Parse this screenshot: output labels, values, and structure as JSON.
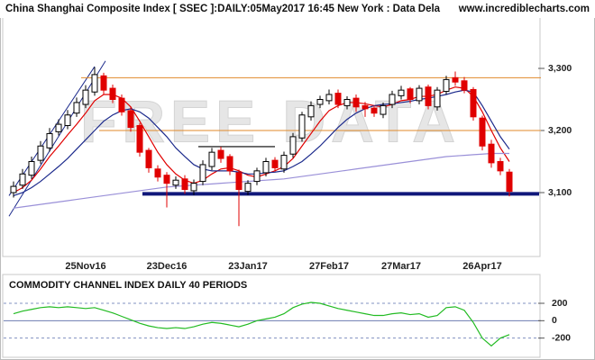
{
  "chart_data": [
    {
      "type": "candlestick",
      "title": "China Shanghai Composite Index [ SSEC ]:DAILY:05May2017 16:45 New York : Data Dela",
      "source": "www.incrediblecharts.com",
      "watermark": "FREE DATA",
      "categories": [
        null,
        null,
        null,
        null,
        null,
        null,
        null,
        null,
        "25Nov16",
        null,
        null,
        null,
        null,
        null,
        null,
        null,
        null,
        "23Dec16",
        null,
        null,
        null,
        null,
        null,
        null,
        null,
        null,
        "23Jan17",
        null,
        null,
        null,
        null,
        null,
        null,
        null,
        null,
        "27Feb17",
        null,
        null,
        null,
        null,
        null,
        null,
        null,
        "27Mar17",
        null,
        null,
        null,
        null,
        null,
        null,
        null,
        null,
        "26Apr17",
        null,
        null,
        null
      ],
      "open": [
        3100,
        3112,
        3128,
        3152,
        3172,
        3198,
        3208,
        3228,
        3242,
        3262,
        3288,
        3268,
        3252,
        3232,
        3208,
        3168,
        3138,
        3128,
        3112,
        3122,
        3103,
        3118,
        3142,
        3168,
        3158,
        3132,
        3102,
        3118,
        3132,
        3152,
        3138,
        3162,
        3188,
        3222,
        3242,
        3248,
        3260,
        3240,
        3252,
        3240,
        3236,
        3226,
        3242,
        3256,
        3267,
        3248,
        3270,
        3238,
        3263,
        3285,
        3280,
        3266,
        3220,
        3178,
        3150,
        3133
      ],
      "high": [
        3118,
        3138,
        3158,
        3183,
        3204,
        3218,
        3233,
        3253,
        3273,
        3302,
        3293,
        3274,
        3258,
        3238,
        3212,
        3172,
        3144,
        3133,
        3126,
        3128,
        3121,
        3152,
        3172,
        3174,
        3162,
        3137,
        3120,
        3140,
        3156,
        3157,
        3166,
        3196,
        3230,
        3247,
        3256,
        3266,
        3266,
        3255,
        3258,
        3246,
        3240,
        3245,
        3264,
        3272,
        3270,
        3273,
        3274,
        3270,
        3288,
        3295,
        3286,
        3270,
        3224,
        3185,
        3156,
        3138
      ],
      "low": [
        3092,
        3106,
        3122,
        3146,
        3166,
        3192,
        3202,
        3222,
        3236,
        3256,
        3258,
        3244,
        3224,
        3198,
        3158,
        3132,
        3118,
        3076,
        3106,
        3098,
        3096,
        3112,
        3136,
        3148,
        3128,
        3046,
        3096,
        3112,
        3126,
        3134,
        3132,
        3156,
        3182,
        3216,
        3236,
        3242,
        3236,
        3234,
        3230,
        3222,
        3222,
        3220,
        3236,
        3250,
        3244,
        3242,
        3234,
        3232,
        3258,
        3272,
        3260,
        3216,
        3168,
        3140,
        3128,
        3094
      ],
      "close": [
        3110,
        3130,
        3150,
        3175,
        3195,
        3210,
        3225,
        3245,
        3265,
        3290,
        3265,
        3250,
        3230,
        3205,
        3165,
        3140,
        3125,
        3115,
        3120,
        3105,
        3115,
        3145,
        3165,
        3155,
        3135,
        3105,
        3115,
        3135,
        3150,
        3140,
        3160,
        3190,
        3225,
        3240,
        3250,
        3258,
        3242,
        3250,
        3238,
        3235,
        3228,
        3240,
        3258,
        3265,
        3250,
        3268,
        3240,
        3265,
        3282,
        3278,
        3265,
        3222,
        3175,
        3148,
        3135,
        3102
      ],
      "up_color": "#000000",
      "down_color": "#e00000",
      "series": [
        {
          "color": "#e00000",
          "values": [
            3100,
            3108,
            3120,
            3138,
            3158,
            3175,
            3193,
            3210,
            3228,
            3248,
            3258,
            3258,
            3252,
            3238,
            3215,
            3190,
            3165,
            3145,
            3130,
            3120,
            3115,
            3120,
            3130,
            3138,
            3140,
            3135,
            3128,
            3125,
            3130,
            3135,
            3142,
            3155,
            3175,
            3195,
            3215,
            3232,
            3240,
            3245,
            3245,
            3243,
            3240,
            3238,
            3242,
            3248,
            3250,
            3255,
            3255,
            3258,
            3265,
            3270,
            3268,
            3255,
            3230,
            3200,
            3172,
            3150
          ]
        },
        {
          "color": "#1c2a8c",
          "values": [
            3095,
            3100,
            3108,
            3118,
            3130,
            3142,
            3155,
            3170,
            3185,
            3200,
            3215,
            3225,
            3232,
            3235,
            3230,
            3220,
            3205,
            3190,
            3172,
            3158,
            3145,
            3138,
            3135,
            3135,
            3135,
            3133,
            3130,
            3130,
            3132,
            3133,
            3135,
            3142,
            3150,
            3162,
            3175,
            3190,
            3205,
            3218,
            3228,
            3235,
            3240,
            3242,
            3243,
            3245,
            3247,
            3250,
            3252,
            3255,
            3258,
            3262,
            3265,
            3262,
            3240,
            3215,
            3190,
            3170
          ]
        },
        {
          "color": "#9a90d8",
          "values": [
            3075,
            3077,
            3079,
            3081,
            3083,
            3085,
            3087,
            3089,
            3091,
            3093,
            3095,
            3097,
            3099,
            3101,
            3103,
            3105,
            3107,
            3109,
            3110,
            3111,
            3112,
            3113,
            3114,
            3115,
            3116,
            3117,
            3118,
            3119,
            3120,
            3121,
            3122,
            3124,
            3126,
            3128,
            3130,
            3132,
            3134,
            3136,
            3138,
            3140,
            3142,
            3144,
            3146,
            3148,
            3150,
            3152,
            3154,
            3156,
            3158,
            3159,
            3160,
            3161,
            3162,
            3163,
            3163,
            3163
          ]
        }
      ],
      "lines": [
        {
          "x": [
            -0.5,
            10.2
          ],
          "y": [
            3062,
            3312
          ],
          "color": "#1c2a8c",
          "width": 1
        },
        {
          "x": [
            -0.5,
            9
          ],
          "y": [
            3095,
            3303
          ],
          "color": "#1c2a8c",
          "width": 1
        },
        {
          "x": [
            7.5,
            58.5
          ],
          "y": [
            3285,
            3285
          ],
          "color": "#e08a2a",
          "width": 1
        },
        {
          "x": [
            9.5,
            58.5
          ],
          "y": [
            3200,
            3200
          ],
          "color": "#e08a2a",
          "width": 1
        },
        {
          "x": [
            20.5,
            29
          ],
          "y": [
            3174,
            3174
          ],
          "color": "#000000",
          "width": 1.2
        },
        {
          "x": [
            14.3,
            58.3
          ],
          "y": [
            3098,
            3098
          ],
          "color": "#10187a",
          "width": 4
        }
      ],
      "ylim": [
        3000,
        3400
      ],
      "yticks": [
        {
          "value": 3100,
          "label": "3,100"
        },
        {
          "value": 3200,
          "label": "3,200"
        },
        {
          "value": 3300,
          "label": "3,300"
        }
      ]
    },
    {
      "type": "line",
      "title": "COMMODITY CHANNEL INDEX DAILY 40 PERIODS",
      "series": [
        {
          "color": "#22bb22",
          "values": [
            80,
            110,
            130,
            150,
            160,
            150,
            160,
            150,
            140,
            150,
            120,
            90,
            50,
            10,
            -30,
            -60,
            -80,
            -90,
            -80,
            -90,
            -70,
            -40,
            -20,
            -30,
            -50,
            -70,
            -40,
            0,
            20,
            40,
            80,
            150,
            190,
            210,
            200,
            170,
            140,
            120,
            100,
            80,
            60,
            60,
            80,
            90,
            70,
            80,
            40,
            60,
            150,
            160,
            120,
            -20,
            -200,
            -290,
            -200,
            -160
          ]
        }
      ],
      "ylim": [
        -400,
        500
      ],
      "yticks": [
        -200,
        0,
        200
      ]
    }
  ]
}
